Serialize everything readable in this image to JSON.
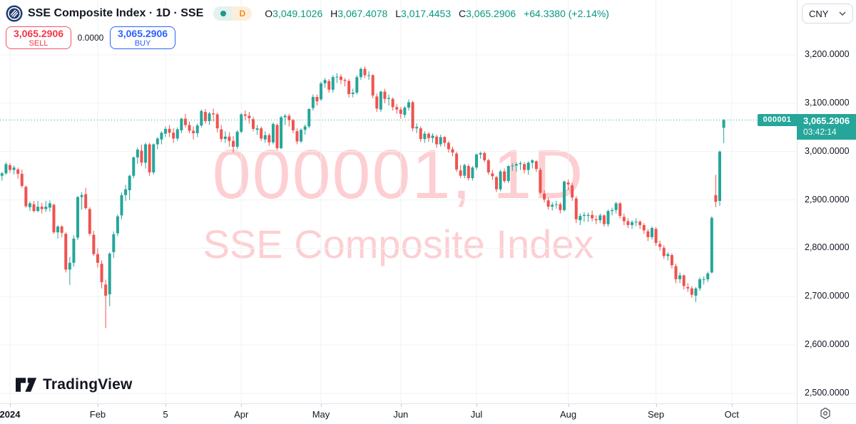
{
  "header": {
    "title": "SSE Composite Index · 1D · SSE",
    "interval_badge": "D",
    "ohlc": {
      "items": [
        {
          "label": "O",
          "value": "3,049.1026"
        },
        {
          "label": "H",
          "value": "3,067.4078"
        },
        {
          "label": "L",
          "value": "3,017.4453"
        },
        {
          "label": "C",
          "value": "3,065.2906"
        }
      ],
      "change": "+64.3380 (+2.14%)"
    }
  },
  "trade_panel": {
    "sell_price": "3,065.2906",
    "sell_label": "SELL",
    "spread": "0.0000",
    "buy_price": "3,065.2906",
    "buy_label": "BUY"
  },
  "toolbar": {
    "currency": "CNY"
  },
  "watermark": {
    "line1": "000001, 1D",
    "line2": "SSE Composite Index"
  },
  "price_label": {
    "symbol": "000001",
    "price": "3,065.2906",
    "countdown": "03:42:14"
  },
  "logo_text": "TradingView",
  "chart_data": {
    "type": "candlestick",
    "title": "SSE Composite Index",
    "symbol": "000001",
    "interval": "1D",
    "ylim": [
      2500,
      3200
    ],
    "grid": true,
    "last_price": 3065.2906,
    "colors": {
      "up": "#26a69a",
      "down": "#ef5350"
    },
    "y_axis": {
      "ticks": [
        3200,
        3100,
        3000,
        2900,
        2800,
        2700,
        2600,
        2500
      ]
    },
    "x_axis": {
      "labels": [
        {
          "label": "2024",
          "index": 2,
          "bold": true
        },
        {
          "label": "Feb",
          "index": 24
        },
        {
          "label": "5",
          "index": 41
        },
        {
          "label": "Apr",
          "index": 60
        },
        {
          "label": "May",
          "index": 80
        },
        {
          "label": "Jun",
          "index": 100
        },
        {
          "label": "Jul",
          "index": 119
        },
        {
          "label": "Aug",
          "index": 142
        },
        {
          "label": "Sep",
          "index": 164
        },
        {
          "label": "Oct",
          "index": 183
        }
      ]
    },
    "candles": [
      [
        2950,
        2958,
        2940,
        2955
      ],
      [
        2955,
        2978,
        2952,
        2974
      ],
      [
        2972,
        2976,
        2956,
        2962
      ],
      [
        2962,
        2971,
        2953,
        2967
      ],
      [
        2963,
        2967,
        2944,
        2954
      ],
      [
        2954,
        2963,
        2925,
        2929
      ],
      [
        2927,
        2930,
        2884,
        2887
      ],
      [
        2885,
        2897,
        2877,
        2893
      ],
      [
        2891,
        2898,
        2874,
        2877
      ],
      [
        2877,
        2898,
        2875,
        2886
      ],
      [
        2886,
        2894,
        2872,
        2881
      ],
      [
        2881,
        2898,
        2875,
        2886
      ],
      [
        2884,
        2899,
        2876,
        2893
      ],
      [
        2890,
        2892,
        2830,
        2833
      ],
      [
        2833,
        2848,
        2820,
        2845
      ],
      [
        2845,
        2848,
        2823,
        2832
      ],
      [
        2830,
        2833,
        2750,
        2756
      ],
      [
        2756,
        2782,
        2724,
        2770
      ],
      [
        2770,
        2827,
        2762,
        2820
      ],
      [
        2822,
        2908,
        2817,
        2906
      ],
      [
        2906,
        2916,
        2880,
        2910
      ],
      [
        2912,
        2925,
        2880,
        2883
      ],
      [
        2881,
        2885,
        2826,
        2830
      ],
      [
        2828,
        2836,
        2784,
        2788
      ],
      [
        2788,
        2800,
        2760,
        2770
      ],
      [
        2768,
        2775,
        2717,
        2730
      ],
      [
        2725,
        2735,
        2635,
        2702
      ],
      [
        2705,
        2792,
        2680,
        2789
      ],
      [
        2792,
        2835,
        2780,
        2829
      ],
      [
        2831,
        2870,
        2825,
        2866
      ],
      [
        2868,
        2915,
        2860,
        2910
      ],
      [
        2910,
        2931,
        2898,
        2922
      ],
      [
        2920,
        2952,
        2900,
        2950
      ],
      [
        2950,
        2990,
        2945,
        2988
      ],
      [
        2988,
        3008,
        2975,
        3004
      ],
      [
        3002,
        3014,
        2970,
        2977
      ],
      [
        2977,
        3018,
        2965,
        3015
      ],
      [
        3015,
        3018,
        2950,
        2957
      ],
      [
        2957,
        3017,
        2952,
        3015
      ],
      [
        3015,
        3030,
        3005,
        3027
      ],
      [
        3025,
        3042,
        3015,
        3039
      ],
      [
        3037,
        3052,
        3030,
        3047
      ],
      [
        3047,
        3055,
        3030,
        3039
      ],
      [
        3039,
        3048,
        3018,
        3027
      ],
      [
        3027,
        3050,
        3022,
        3046
      ],
      [
        3044,
        3070,
        3038,
        3068
      ],
      [
        3068,
        3078,
        3050,
        3055
      ],
      [
        3055,
        3062,
        3038,
        3043
      ],
      [
        3043,
        3052,
        3025,
        3038
      ],
      [
        3038,
        3058,
        3030,
        3054
      ],
      [
        3054,
        3087,
        3050,
        3084
      ],
      [
        3082,
        3088,
        3058,
        3063
      ],
      [
        3063,
        3082,
        3055,
        3079
      ],
      [
        3079,
        3089,
        3062,
        3077
      ],
      [
        3077,
        3080,
        3040,
        3048
      ],
      [
        3046,
        3055,
        3020,
        3026
      ],
      [
        3026,
        3042,
        3018,
        3031
      ],
      [
        3031,
        3040,
        3010,
        3022
      ],
      [
        3022,
        3032,
        2998,
        3010
      ],
      [
        3010,
        3044,
        3005,
        3041
      ],
      [
        3041,
        3080,
        3038,
        3077
      ],
      [
        3077,
        3085,
        3065,
        3074
      ],
      [
        3074,
        3082,
        3058,
        3069
      ],
      [
        3067,
        3072,
        3042,
        3047
      ],
      [
        3045,
        3055,
        3035,
        3048
      ],
      [
        3048,
        3052,
        3022,
        3027
      ],
      [
        3025,
        3042,
        3018,
        3034
      ],
      [
        3034,
        3038,
        3012,
        3019
      ],
      [
        3019,
        3060,
        3015,
        3057
      ],
      [
        3055,
        3058,
        3003,
        3007
      ],
      [
        3007,
        3074,
        3005,
        3071
      ],
      [
        3071,
        3078,
        3055,
        3074
      ],
      [
        3074,
        3078,
        3052,
        3065
      ],
      [
        3065,
        3068,
        3038,
        3044
      ],
      [
        3042,
        3048,
        3015,
        3021
      ],
      [
        3021,
        3048,
        3018,
        3045
      ],
      [
        3045,
        3056,
        3035,
        3052
      ],
      [
        3052,
        3090,
        3048,
        3088
      ],
      [
        3090,
        3118,
        3085,
        3113
      ],
      [
        3113,
        3118,
        3095,
        3104
      ],
      [
        3108,
        3145,
        3105,
        3141
      ],
      [
        3141,
        3152,
        3132,
        3148
      ],
      [
        3146,
        3150,
        3122,
        3128
      ],
      [
        3128,
        3158,
        3122,
        3154
      ],
      [
        3154,
        3162,
        3142,
        3155
      ],
      [
        3155,
        3160,
        3140,
        3148
      ],
      [
        3148,
        3152,
        3135,
        3146
      ],
      [
        3146,
        3150,
        3112,
        3119
      ],
      [
        3119,
        3130,
        3112,
        3122
      ],
      [
        3122,
        3158,
        3118,
        3154
      ],
      [
        3154,
        3174,
        3148,
        3171
      ],
      [
        3171,
        3176,
        3152,
        3158
      ],
      [
        3158,
        3166,
        3148,
        3158
      ],
      [
        3158,
        3160,
        3110,
        3116
      ],
      [
        3114,
        3120,
        3082,
        3089
      ],
      [
        3087,
        3126,
        3082,
        3124
      ],
      [
        3124,
        3130,
        3100,
        3109
      ],
      [
        3109,
        3118,
        3095,
        3111
      ],
      [
        3109,
        3112,
        3085,
        3092
      ],
      [
        3092,
        3098,
        3078,
        3087
      ],
      [
        3087,
        3092,
        3068,
        3078
      ],
      [
        3076,
        3094,
        3070,
        3091
      ],
      [
        3091,
        3108,
        3085,
        3102
      ],
      [
        3102,
        3105,
        3042,
        3048
      ],
      [
        3048,
        3058,
        3038,
        3051
      ],
      [
        3048,
        3052,
        3020,
        3026
      ],
      [
        3026,
        3042,
        3018,
        3037
      ],
      [
        3037,
        3040,
        3020,
        3028
      ],
      [
        3028,
        3038,
        3018,
        3033
      ],
      [
        3031,
        3035,
        3008,
        3015
      ],
      [
        3015,
        3035,
        3010,
        3030
      ],
      [
        3030,
        3032,
        3010,
        3018
      ],
      [
        3018,
        3022,
        2998,
        3005
      ],
      [
        3005,
        3010,
        2990,
        2998
      ],
      [
        2996,
        3000,
        2958,
        2963
      ],
      [
        2961,
        2972,
        2945,
        2950
      ],
      [
        2950,
        2975,
        2945,
        2972
      ],
      [
        2970,
        2974,
        2940,
        2945
      ],
      [
        2945,
        2970,
        2940,
        2967
      ],
      [
        2967,
        2996,
        2962,
        2994
      ],
      [
        2994,
        3000,
        2985,
        2997
      ],
      [
        2997,
        3000,
        2978,
        2982
      ],
      [
        2982,
        2985,
        2952,
        2957
      ],
      [
        2955,
        2962,
        2942,
        2949
      ],
      [
        2947,
        2950,
        2916,
        2922
      ],
      [
        2922,
        2962,
        2918,
        2959
      ],
      [
        2959,
        2965,
        2935,
        2939
      ],
      [
        2939,
        2972,
        2935,
        2970
      ],
      [
        2970,
        2976,
        2960,
        2971
      ],
      [
        2971,
        2978,
        2958,
        2974
      ],
      [
        2974,
        2980,
        2962,
        2976
      ],
      [
        2974,
        2978,
        2955,
        2962
      ],
      [
        2962,
        2980,
        2952,
        2977
      ],
      [
        2977,
        2984,
        2965,
        2982
      ],
      [
        2980,
        2982,
        2958,
        2964
      ],
      [
        2962,
        2966,
        2912,
        2915
      ],
      [
        2913,
        2920,
        2895,
        2901
      ],
      [
        2899,
        2905,
        2880,
        2886
      ],
      [
        2886,
        2895,
        2878,
        2890
      ],
      [
        2890,
        2898,
        2882,
        2891
      ],
      [
        2891,
        2895,
        2872,
        2879
      ],
      [
        2879,
        2940,
        2876,
        2938
      ],
      [
        2936,
        2942,
        2920,
        2932
      ],
      [
        2930,
        2935,
        2898,
        2905
      ],
      [
        2903,
        2908,
        2852,
        2860
      ],
      [
        2858,
        2872,
        2848,
        2867
      ],
      [
        2867,
        2875,
        2855,
        2869
      ],
      [
        2867,
        2874,
        2855,
        2869
      ],
      [
        2869,
        2878,
        2856,
        2862
      ],
      [
        2860,
        2868,
        2850,
        2858
      ],
      [
        2858,
        2872,
        2852,
        2868
      ],
      [
        2868,
        2870,
        2845,
        2850
      ],
      [
        2850,
        2880,
        2845,
        2877
      ],
      [
        2877,
        2884,
        2868,
        2879
      ],
      [
        2879,
        2896,
        2872,
        2893
      ],
      [
        2893,
        2896,
        2862,
        2867
      ],
      [
        2865,
        2872,
        2848,
        2856
      ],
      [
        2856,
        2862,
        2842,
        2848
      ],
      [
        2848,
        2858,
        2840,
        2854
      ],
      [
        2854,
        2862,
        2846,
        2855
      ],
      [
        2855,
        2858,
        2840,
        2848
      ],
      [
        2848,
        2852,
        2830,
        2837
      ],
      [
        2835,
        2840,
        2815,
        2823
      ],
      [
        2823,
        2845,
        2818,
        2842
      ],
      [
        2840,
        2844,
        2805,
        2811
      ],
      [
        2809,
        2816,
        2795,
        2803
      ],
      [
        2801,
        2806,
        2778,
        2784
      ],
      [
        2784,
        2792,
        2775,
        2788
      ],
      [
        2786,
        2790,
        2758,
        2765
      ],
      [
        2763,
        2768,
        2728,
        2736
      ],
      [
        2736,
        2750,
        2728,
        2744
      ],
      [
        2744,
        2746,
        2715,
        2722
      ],
      [
        2720,
        2728,
        2710,
        2717
      ],
      [
        2717,
        2722,
        2698,
        2704
      ],
      [
        2702,
        2720,
        2689,
        2717
      ],
      [
        2717,
        2740,
        2712,
        2736
      ],
      [
        2736,
        2742,
        2725,
        2736
      ],
      [
        2736,
        2752,
        2730,
        2748
      ],
      [
        2750,
        2866,
        2748,
        2863
      ],
      [
        2910,
        2952,
        2885,
        2896
      ],
      [
        2898,
        3002,
        2888,
        3000
      ],
      [
        3049.1,
        3067.41,
        3017.45,
        3065.29
      ]
    ]
  }
}
